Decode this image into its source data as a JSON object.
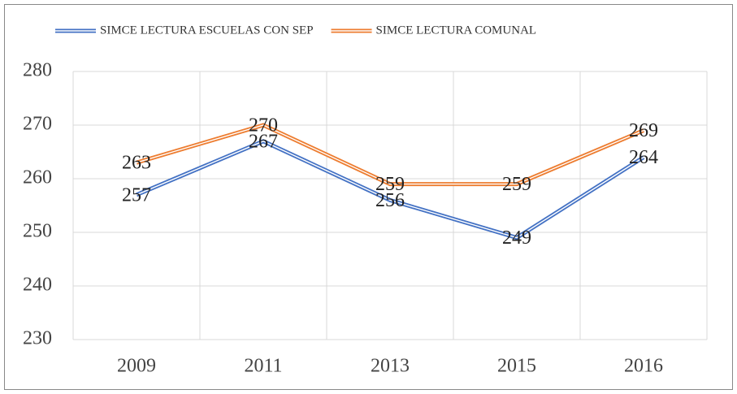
{
  "chart_data": {
    "type": "line",
    "categories": [
      "2009",
      "2011",
      "2013",
      "2015",
      "2016"
    ],
    "series": [
      {
        "name": "SIMCE LECTURA ESCUELAS CON SEP",
        "color": "#4472c4",
        "values": [
          257,
          267,
          256,
          249,
          264
        ]
      },
      {
        "name": "SIMCE LECTURA COMUNAL",
        "color": "#ed7d31",
        "values": [
          263,
          270,
          259,
          259,
          269
        ]
      }
    ],
    "ylim": [
      230,
      280
    ],
    "yticks": [
      230,
      240,
      250,
      260,
      270,
      280
    ],
    "grid": true,
    "data_labels": true,
    "legend": "top"
  }
}
